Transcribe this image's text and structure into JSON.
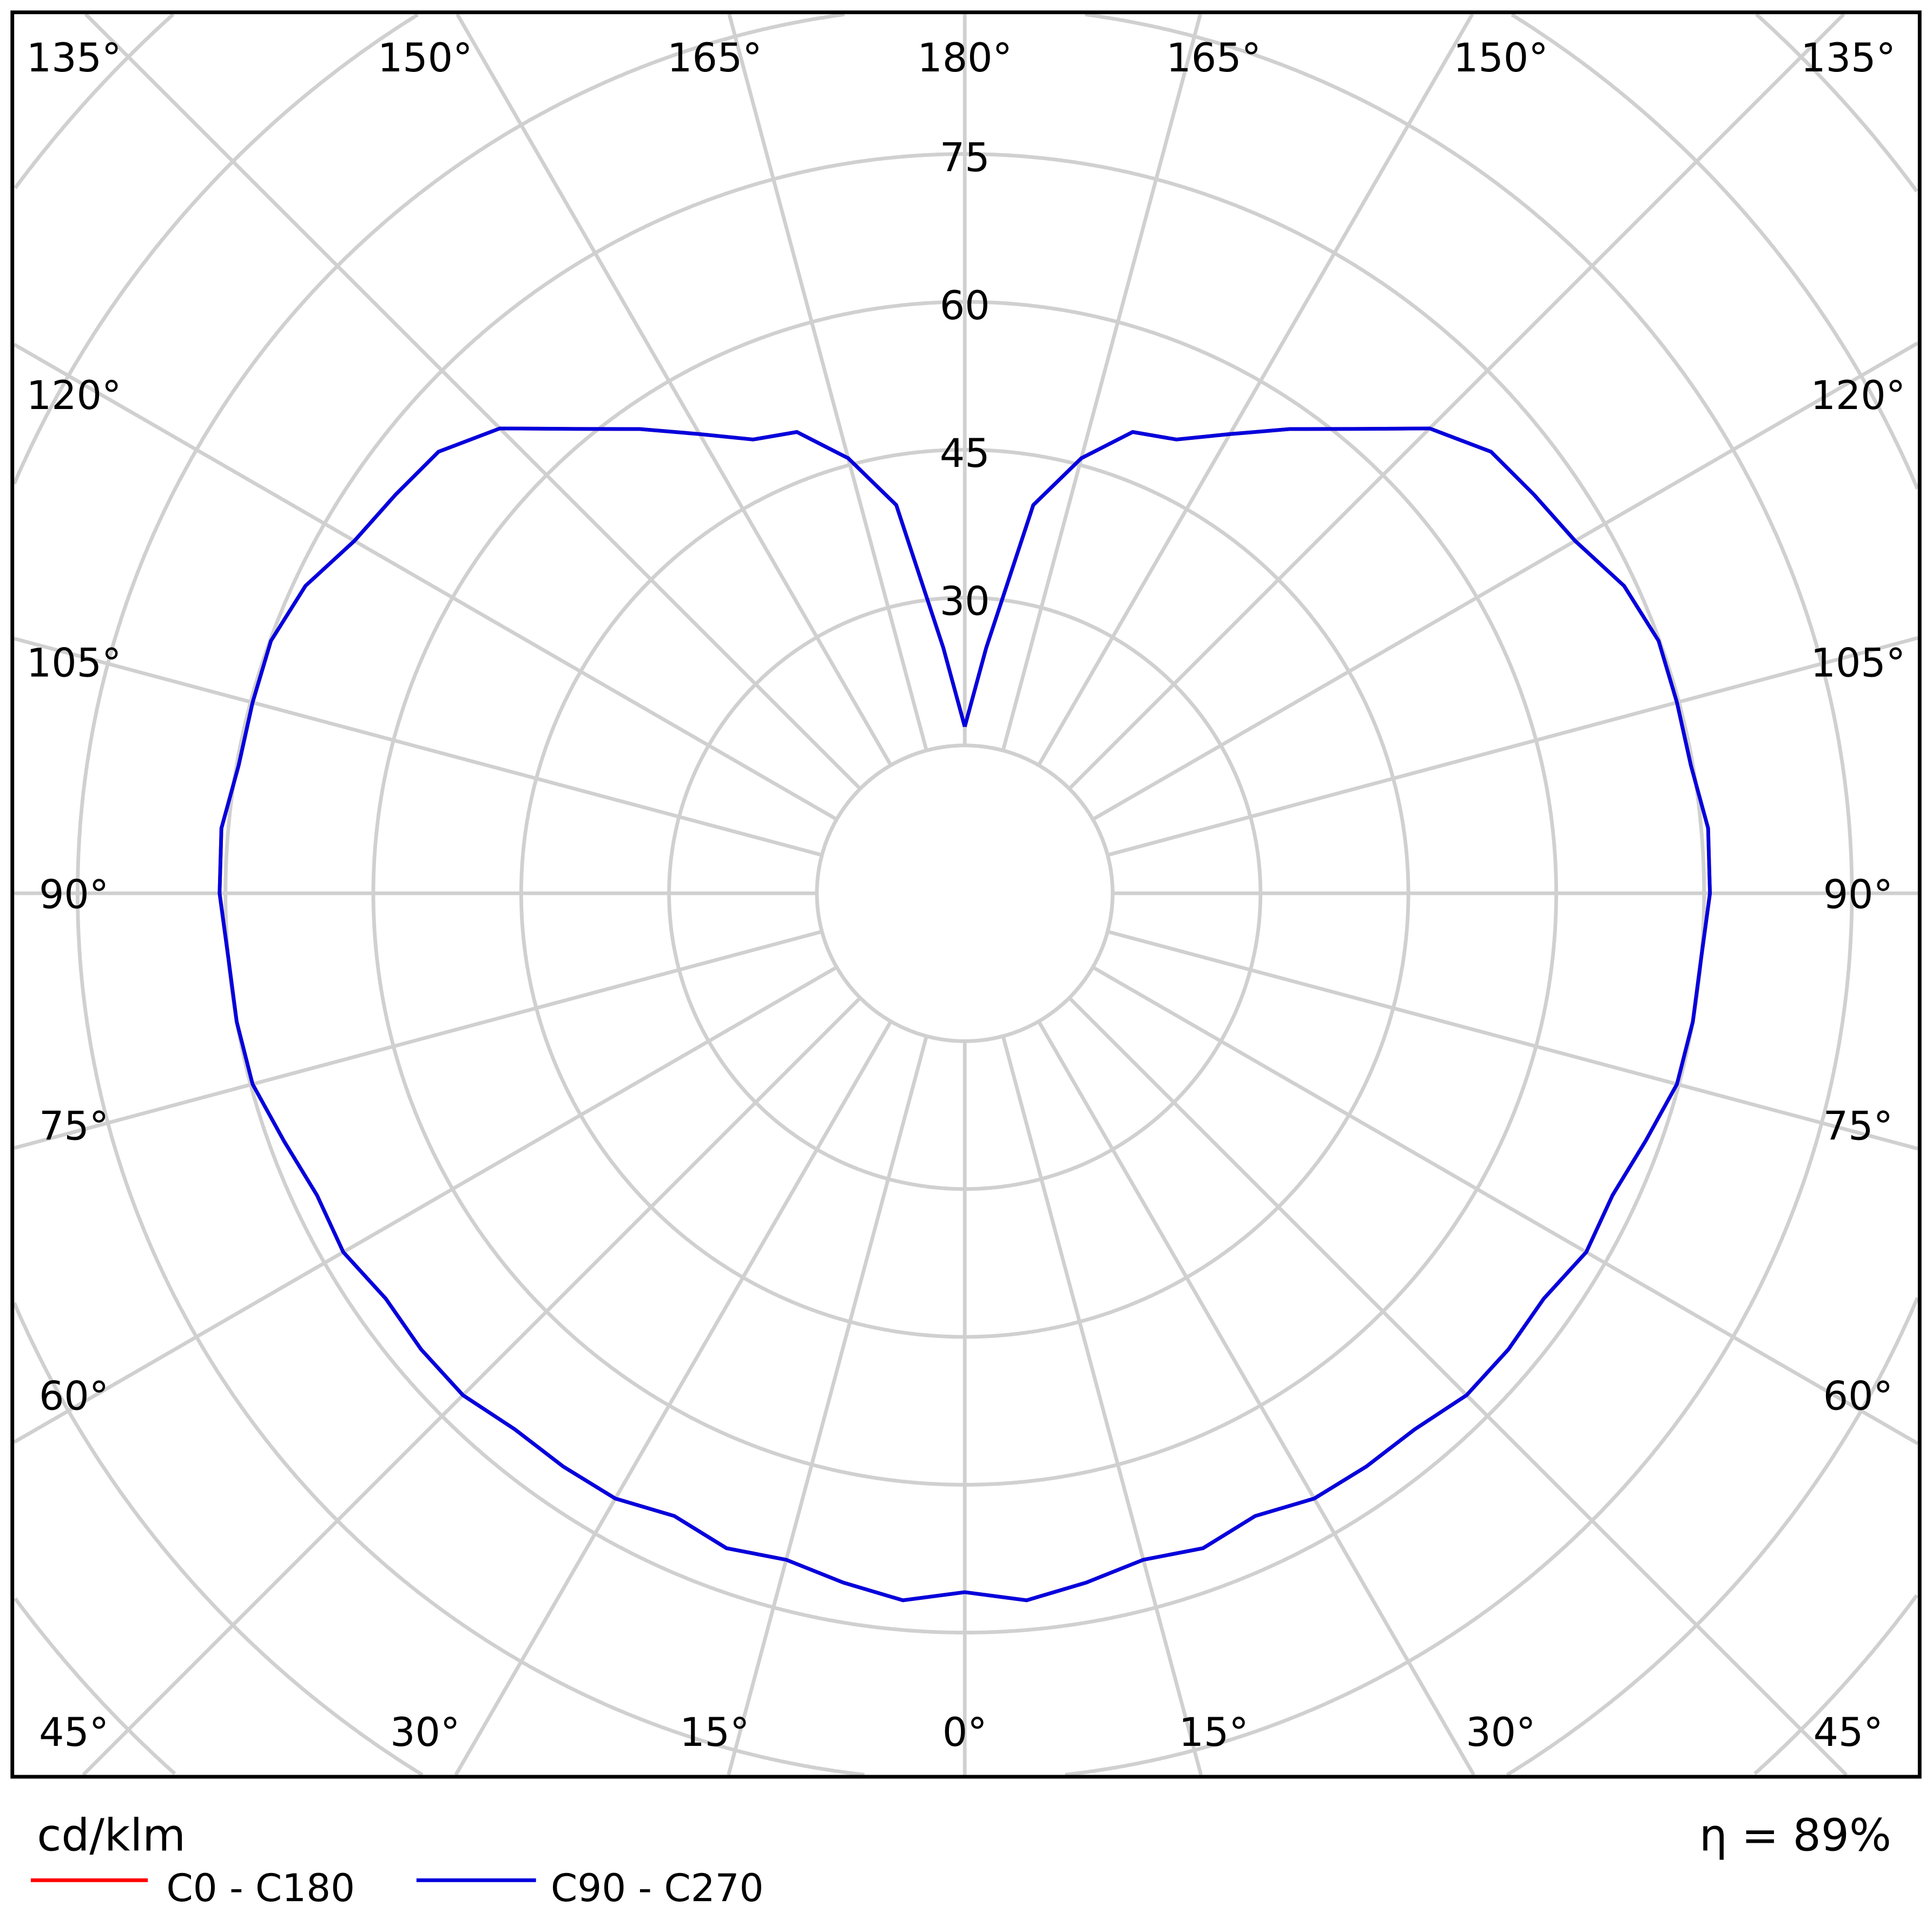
{
  "chart_data": {
    "type": "polar-line",
    "unit_label": "cd/klm",
    "efficiency_label": "η = 89%",
    "radial_ticks": [
      30,
      45,
      60,
      75
    ],
    "radial_range": [
      0,
      150
    ],
    "grid": true,
    "angle_labels": {
      "top": [
        "135°",
        "150°",
        "165°",
        "180°",
        "165°",
        "150°",
        "135°"
      ],
      "left": [
        "120°",
        "105°",
        "90°",
        "75°",
        "60°"
      ],
      "right": [
        "120°",
        "105°",
        "90°",
        "75°",
        "60°"
      ],
      "bottom": [
        "45°",
        "30°",
        "15°",
        "0°",
        "15°",
        "30°",
        "45°"
      ]
    },
    "gamma": [
      0,
      5,
      10,
      15,
      20,
      25,
      30,
      35,
      40,
      45,
      50,
      55,
      60,
      65,
      70,
      75,
      80,
      85,
      90,
      95,
      100,
      105,
      110,
      115,
      120,
      125,
      130,
      135,
      140,
      145,
      150,
      155,
      160,
      165,
      170,
      175,
      180
    ],
    "series": [
      {
        "name": "C0 - C180",
        "color": "#ff0000",
        "values": [
          70.9,
          72,
          71,
          70,
          70.7,
          69.7,
          70.9,
          71,
          71,
          72,
          72,
          71.7,
          72.8,
          72.5,
          73.5,
          74.8,
          75,
          75,
          75.6,
          75.7,
          74.8,
          74.8,
          74.9,
          73.8,
          71.5,
          70.5,
          69.7,
          66.7,
          61.5,
          57.5,
          53.8,
          50.8,
          49.8,
          45.7,
          40,
          25,
          16.9
        ]
      },
      {
        "name": "C90 - C270",
        "color": "#0000dd",
        "values": [
          70.9,
          72,
          71,
          70,
          70.7,
          69.7,
          70.9,
          71,
          71,
          72,
          72,
          71.7,
          72.8,
          72.5,
          73.5,
          74.8,
          75,
          75,
          75.6,
          75.7,
          74.8,
          74.8,
          74.9,
          73.8,
          71.5,
          70.5,
          69.7,
          66.7,
          61.5,
          57.5,
          53.8,
          50.8,
          49.8,
          45.7,
          40,
          25,
          16.9
        ]
      }
    ],
    "legend_placement": "bottom-left"
  }
}
